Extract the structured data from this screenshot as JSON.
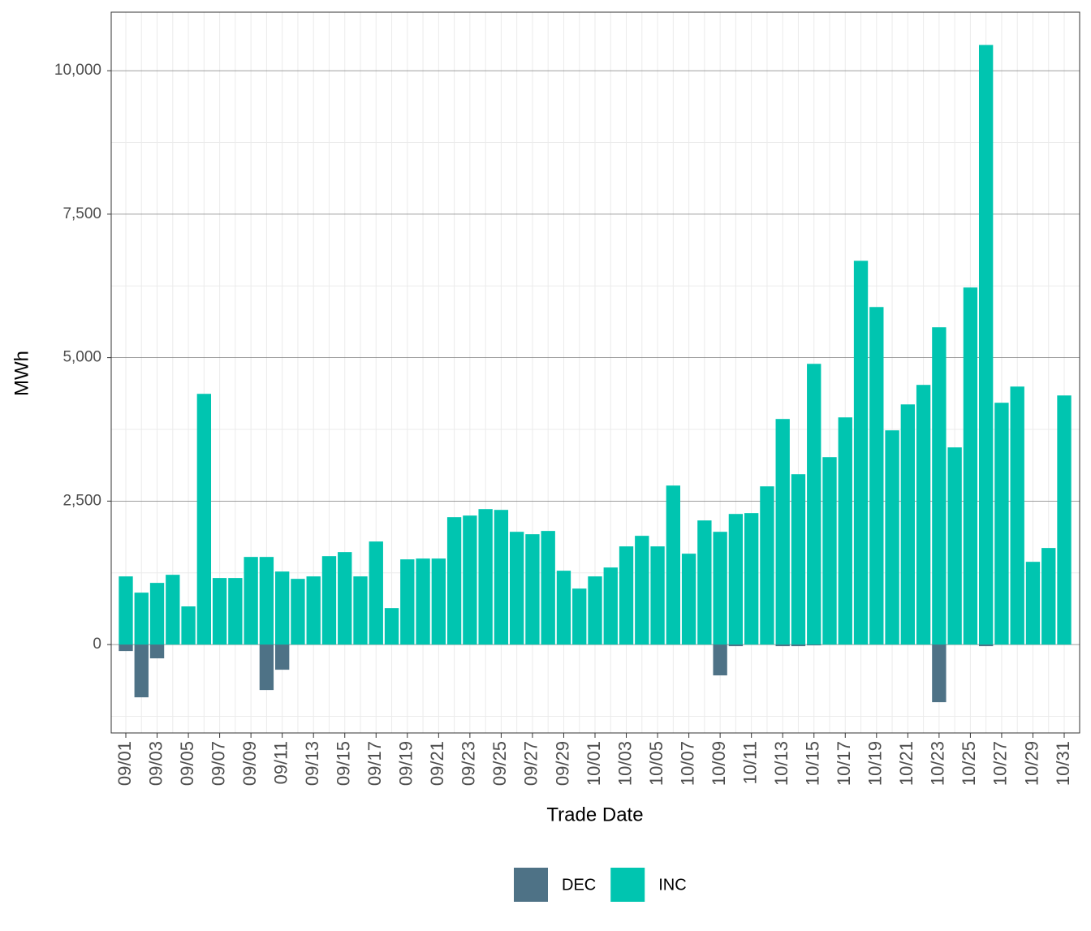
{
  "chart_data": {
    "type": "bar",
    "x_label": "Trade Date",
    "y_label": "MWh",
    "categories": [
      "09/01",
      null,
      "09/03",
      null,
      "09/05",
      null,
      "09/07",
      null,
      "09/09",
      null,
      "09/11",
      null,
      "09/13",
      null,
      "09/15",
      null,
      "09/17",
      null,
      "09/19",
      null,
      "09/21",
      null,
      "09/23",
      null,
      "09/25",
      null,
      "09/27",
      null,
      "09/29",
      null,
      "10/01",
      null,
      "10/03",
      null,
      "10/05",
      null,
      "10/07",
      null,
      "10/09",
      null,
      "10/11",
      null,
      "10/13",
      null,
      "10/15",
      null,
      "10/17",
      null,
      "10/19",
      null,
      "10/21",
      null,
      "10/23",
      null,
      "10/25",
      null,
      "10/27",
      null,
      "10/29",
      null,
      "10/31"
    ],
    "series": [
      {
        "name": "DEC",
        "color": "#4e7286",
        "values": [
          -113,
          -919,
          -240,
          0,
          0,
          0,
          0,
          0,
          0,
          -792,
          -438,
          0,
          0,
          0,
          0,
          0,
          0,
          0,
          0,
          0,
          0,
          0,
          0,
          0,
          0,
          0,
          0,
          0,
          0,
          0,
          0,
          0,
          0,
          0,
          0,
          0,
          0,
          0,
          -537,
          -28,
          0,
          0,
          -28,
          -28,
          -14,
          0,
          0,
          0,
          0,
          0,
          0,
          0,
          -1004,
          0,
          0,
          -28,
          0,
          0,
          0,
          0,
          0
        ]
      },
      {
        "name": "INC",
        "color": "#00c5b0",
        "values": [
          1188,
          905,
          1075,
          1216,
          665,
          4369,
          1160,
          1160,
          1527,
          1527,
          1273,
          1145,
          1188,
          1541,
          1612,
          1188,
          1796,
          636,
          1485,
          1499,
          1499,
          2220,
          2248,
          2361,
          2347,
          1965,
          1923,
          1980,
          1287,
          976,
          1188,
          1343,
          1711,
          1895,
          1711,
          2771,
          1584,
          2163,
          1965,
          2276,
          2291,
          2757,
          3931,
          2969,
          4892,
          3266,
          3959,
          6688,
          5882,
          3733,
          4185,
          4525,
          5529,
          3436,
          6222,
          10449,
          4214,
          4496,
          1442,
          1683,
          4341
        ]
      }
    ],
    "ylim": [
      -1540,
      11020
    ],
    "yticks": [
      0,
      {
        "value": 2500,
        "label": "2,500"
      },
      {
        "value": 5000,
        "label": "5,000"
      },
      {
        "value": 7500,
        "label": "7,500"
      },
      {
        "value": 10000,
        "label": "10,000"
      }
    ],
    "grid": true,
    "legend": "bottom"
  }
}
